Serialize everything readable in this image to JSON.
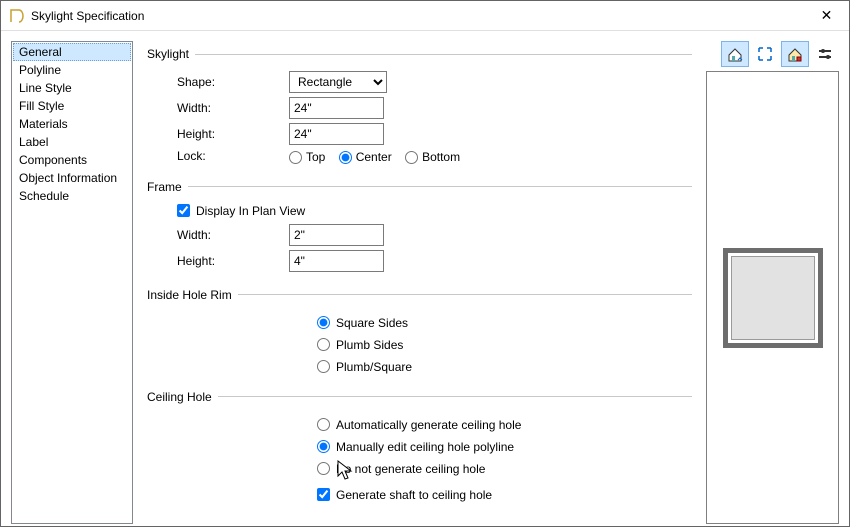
{
  "window": {
    "title": "Skylight Specification"
  },
  "sidebar": {
    "items": [
      {
        "label": "General",
        "selected": true
      },
      {
        "label": "Polyline"
      },
      {
        "label": "Line Style"
      },
      {
        "label": "Fill Style"
      },
      {
        "label": "Materials"
      },
      {
        "label": "Label"
      },
      {
        "label": "Components"
      },
      {
        "label": "Object Information"
      },
      {
        "label": "Schedule"
      }
    ]
  },
  "sections": {
    "skylight": {
      "legend": "Skylight",
      "shape_label": "Shape:",
      "shape_value": "Rectangle",
      "width_label": "Width:",
      "width_value": "24\"",
      "height_label": "Height:",
      "height_value": "24\"",
      "lock_label": "Lock:",
      "lock_options": {
        "top": "Top",
        "center": "Center",
        "bottom": "Bottom"
      },
      "lock_selected": "center"
    },
    "frame": {
      "legend": "Frame",
      "display_label": "Display In Plan View",
      "display_checked": true,
      "width_label": "Width:",
      "width_value": "2\"",
      "height_label": "Height:",
      "height_value": "4\""
    },
    "rim": {
      "legend": "Inside Hole Rim",
      "options": {
        "square": "Square Sides",
        "plumb": "Plumb Sides",
        "both": "Plumb/Square"
      },
      "selected": "square"
    },
    "ceiling": {
      "legend": "Ceiling Hole",
      "options": {
        "auto": "Automatically generate ceiling hole",
        "manual": "Manually edit ceiling hole polyline",
        "none": "Do not generate ceiling hole"
      },
      "selected": "manual",
      "shaft_label": "Generate shaft to ceiling hole",
      "shaft_checked": true
    }
  },
  "preview": {
    "frame_color": "#6d6d6d",
    "glass_color": "#e2e2e2"
  }
}
